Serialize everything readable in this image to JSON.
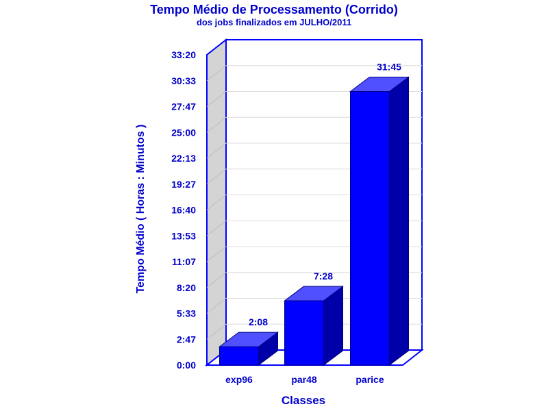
{
  "colors": {
    "text": "#0000cc",
    "bar_front": "#0000ff",
    "bar_top": "#5050ff",
    "bar_side": "#0000a8",
    "frame": "#0000ff",
    "wall": "#d4d4d4",
    "grid": "#dcdcdc"
  },
  "chart_data": {
    "type": "bar",
    "title": "Tempo Médio de Processamento (Corrido)",
    "subtitle": "dos jobs finalizados em JULHO/2011",
    "xlabel": "Classes",
    "ylabel": "Tempo Médio ( Horas : Minutos )",
    "categories": [
      "exp96",
      "par48",
      "parice"
    ],
    "values_minutes": [
      128,
      448,
      1905
    ],
    "value_labels": [
      "2:08",
      "7:28",
      "31:45"
    ],
    "ylim_minutes": [
      0,
      2160
    ],
    "y_ticks": [
      "0:00",
      "2:47",
      "5:33",
      "8:20",
      "11:07",
      "13:53",
      "16:40",
      "19:27",
      "22:13",
      "25:00",
      "27:47",
      "30:33",
      "33:20"
    ],
    "grid": true,
    "three_d": true
  }
}
